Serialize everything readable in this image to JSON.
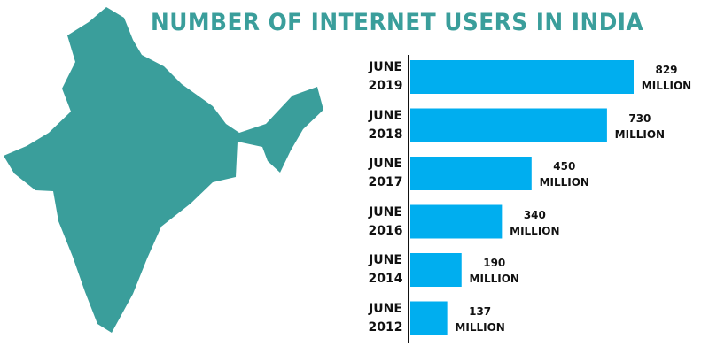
{
  "chart_data": {
    "type": "bar",
    "orientation": "horizontal",
    "title": "NUMBER OF INTERNET USERS IN INDIA",
    "categories": [
      "JUNE 2019",
      "JUNE 2018",
      "JUNE 2017",
      "JUNE 2016",
      "JUNE 2014",
      "JUNE 2012"
    ],
    "values": [
      829,
      730,
      450,
      340,
      190,
      137
    ],
    "value_labels": [
      "829 MILLION",
      "730 MILLION",
      "450 MILLION",
      "340 MILLION",
      "190 MILLION",
      "137 MILLION"
    ],
    "color": "#00aeef"
  }
}
